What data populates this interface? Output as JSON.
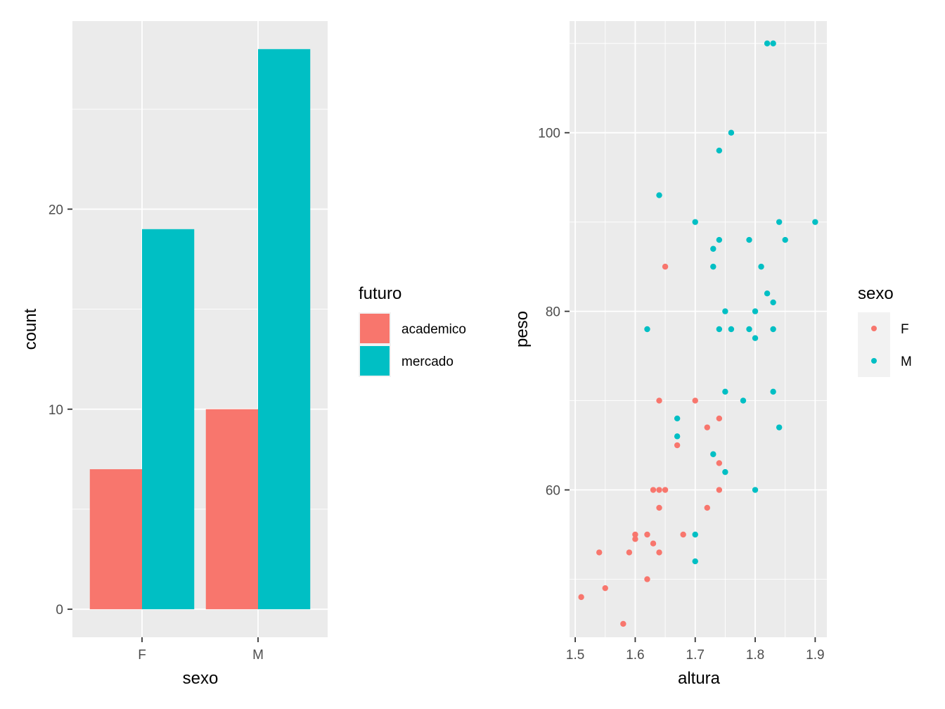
{
  "colors": {
    "academico": "#F8766D",
    "mercado": "#00BFC4",
    "F": "#F8766D",
    "M": "#00BFC4",
    "panel": "#EBEBEB",
    "grid": "#FFFFFF"
  },
  "chart_data": [
    {
      "type": "bar",
      "xlabel": "sexo",
      "ylabel": "count",
      "categories": [
        "F",
        "M"
      ],
      "series": [
        {
          "name": "academico",
          "values": [
            7,
            10
          ]
        },
        {
          "name": "mercado",
          "values": [
            19,
            28
          ]
        }
      ],
      "ylim": [
        -1.4,
        29.4
      ],
      "yticks": [
        0,
        10,
        20
      ],
      "yticks_labels": [
        "0",
        "10",
        "20"
      ],
      "legend": {
        "title": "futuro",
        "position": "right",
        "entries": [
          "academico",
          "mercado"
        ]
      },
      "grid": true
    },
    {
      "type": "scatter",
      "xlabel": "altura",
      "ylabel": "peso",
      "xlim": [
        1.51,
        1.9
      ],
      "ylim": [
        43.5,
        112.5
      ],
      "xticks": [
        1.5,
        1.6,
        1.7,
        1.8,
        1.9
      ],
      "xticks_labels": [
        "1.5",
        "1.6",
        "1.7",
        "1.8",
        "1.9"
      ],
      "yticks": [
        60,
        80,
        100
      ],
      "yticks_labels": [
        "60",
        "80",
        "100"
      ],
      "legend": {
        "title": "sexo",
        "position": "right",
        "entries": [
          "F",
          "M"
        ]
      },
      "grid": true,
      "series": [
        {
          "name": "F",
          "points": [
            [
              1.51,
              48
            ],
            [
              1.55,
              49
            ],
            [
              1.58,
              45
            ],
            [
              1.54,
              53
            ],
            [
              1.59,
              53
            ],
            [
              1.6,
              55
            ],
            [
              1.6,
              54.5
            ],
            [
              1.62,
              50
            ],
            [
              1.62,
              55
            ],
            [
              1.63,
              54
            ],
            [
              1.64,
              53
            ],
            [
              1.63,
              60
            ],
            [
              1.64,
              60
            ],
            [
              1.65,
              60
            ],
            [
              1.64,
              58
            ],
            [
              1.68,
              55
            ],
            [
              1.72,
              58
            ],
            [
              1.74,
              60
            ],
            [
              1.67,
              65
            ],
            [
              1.74,
              63
            ],
            [
              1.72,
              67
            ],
            [
              1.74,
              68
            ],
            [
              1.64,
              70
            ],
            [
              1.7,
              70
            ],
            [
              1.65,
              85
            ]
          ]
        },
        {
          "name": "M",
          "points": [
            [
              1.7,
              52
            ],
            [
              1.7,
              55
            ],
            [
              1.8,
              60
            ],
            [
              1.75,
              62
            ],
            [
              1.73,
              64
            ],
            [
              1.67,
              66
            ],
            [
              1.67,
              68
            ],
            [
              1.84,
              67
            ],
            [
              1.75,
              71
            ],
            [
              1.78,
              70
            ],
            [
              1.83,
              71
            ],
            [
              1.62,
              78
            ],
            [
              1.74,
              78
            ],
            [
              1.76,
              78
            ],
            [
              1.79,
              78
            ],
            [
              1.83,
              78
            ],
            [
              1.8,
              77
            ],
            [
              1.75,
              80
            ],
            [
              1.8,
              80
            ],
            [
              1.83,
              81
            ],
            [
              1.82,
              82
            ],
            [
              1.73,
              85
            ],
            [
              1.81,
              85
            ],
            [
              1.73,
              87
            ],
            [
              1.74,
              88
            ],
            [
              1.79,
              88
            ],
            [
              1.85,
              88
            ],
            [
              1.7,
              90
            ],
            [
              1.84,
              90
            ],
            [
              1.9,
              90
            ],
            [
              1.64,
              93
            ],
            [
              1.74,
              98
            ],
            [
              1.76,
              100
            ],
            [
              1.82,
              110
            ],
            [
              1.83,
              110
            ]
          ]
        }
      ]
    }
  ]
}
